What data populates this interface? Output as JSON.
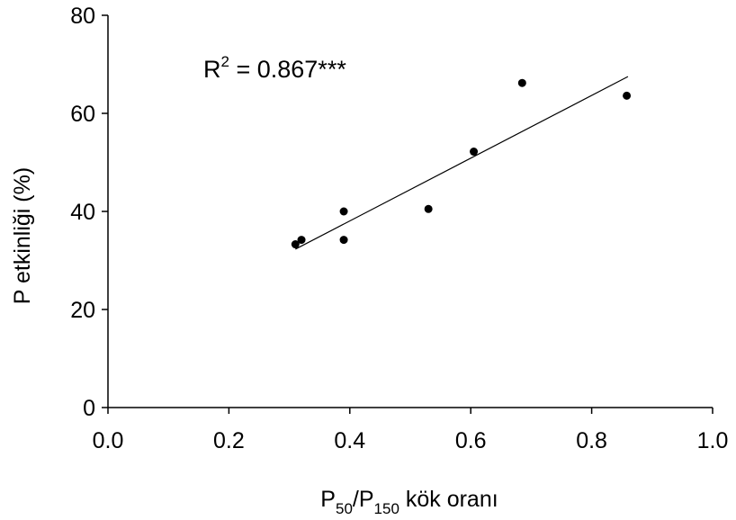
{
  "chart_data": {
    "type": "scatter",
    "xlabel_parts": [
      "P",
      "50",
      "/P",
      "150",
      " kök oranı"
    ],
    "ylabel": "P etkinliği (%)",
    "xlim": [
      0.0,
      1.0
    ],
    "ylim": [
      0,
      80
    ],
    "xticks": [
      "0.0",
      "0.2",
      "0.4",
      "0.6",
      "0.8",
      "1.0"
    ],
    "yticks": [
      "0",
      "20",
      "40",
      "60",
      "80"
    ],
    "points": [
      {
        "x": 0.31,
        "y": 33.3
      },
      {
        "x": 0.32,
        "y": 34.2
      },
      {
        "x": 0.39,
        "y": 40.0
      },
      {
        "x": 0.39,
        "y": 34.2
      },
      {
        "x": 0.53,
        "y": 40.5
      },
      {
        "x": 0.605,
        "y": 52.2
      },
      {
        "x": 0.685,
        "y": 66.2
      },
      {
        "x": 0.858,
        "y": 63.6
      }
    ],
    "trendline": {
      "x": [
        0.31,
        0.86
      ],
      "y": [
        32.3,
        67.5
      ]
    },
    "annotation": {
      "base": "R",
      "sup": "2",
      "text": " = 0.867***"
    },
    "grid": false,
    "legend": "none"
  }
}
